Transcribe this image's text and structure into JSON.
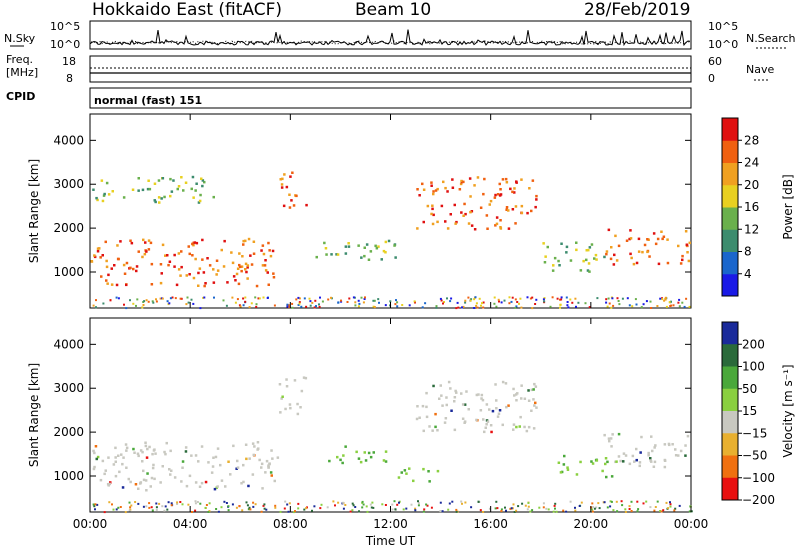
{
  "header": {
    "station": "Hokkaido East (fitACF)",
    "beam": "Beam 10",
    "date": "28/Feb/2019"
  },
  "nsky_panel": {
    "left_label": "N.Sky",
    "right_label": "N.Search",
    "left_ticks": [
      "10^5",
      "10^0"
    ],
    "right_ticks": [
      "10^5",
      "10^0"
    ]
  },
  "freq_panel": {
    "left_label_line1": "Freq.",
    "left_label_line2": "[MHz]",
    "right_label": "Nave",
    "left_ticks": [
      "18",
      "8"
    ],
    "right_ticks": [
      "60",
      "0"
    ]
  },
  "cpid": {
    "label": "CPID",
    "value": "normal (fast) 151"
  },
  "chart_data": [
    {
      "type": "heatmap",
      "title": "",
      "xlabel": "",
      "ylabel": "Slant Range [km]",
      "xlim": [
        "00:00",
        "00:00"
      ],
      "ylim": [
        180,
        4600
      ],
      "y_ticks": [
        1000,
        2000,
        3000,
        4000
      ],
      "x_ticks": [
        "00:00",
        "04:00",
        "08:00",
        "12:00",
        "16:00",
        "20:00",
        "00:00"
      ],
      "colorbar": {
        "label": "Power [dB]",
        "ticks": [
          4,
          8,
          12,
          16,
          20,
          24,
          28
        ],
        "colors": [
          "#1a1ae6",
          "#1a66cc",
          "#3c8c6e",
          "#6ab04c",
          "#e8d020",
          "#f0a020",
          "#f06010",
          "#e01010"
        ]
      },
      "echo_bands": [
        {
          "t0": 0.0,
          "t1": 7.5,
          "r0": 700,
          "r1": 1800,
          "level": "high"
        },
        {
          "t0": 7.5,
          "t1": 8.6,
          "r0": 2400,
          "r1": 3300,
          "level": "high"
        },
        {
          "t0": 13.0,
          "t1": 17.8,
          "r0": 2000,
          "r1": 3200,
          "level": "high"
        },
        {
          "t0": 20.5,
          "t1": 24.0,
          "r0": 1200,
          "r1": 2000,
          "level": "high"
        },
        {
          "t0": 0.0,
          "t1": 5.0,
          "r0": 2600,
          "r1": 3200,
          "level": "mid"
        },
        {
          "t0": 9.0,
          "t1": 12.5,
          "r0": 1300,
          "r1": 1800,
          "level": "mid"
        },
        {
          "t0": 18.0,
          "t1": 20.5,
          "r0": 1000,
          "r1": 1700,
          "level": "mid"
        }
      ]
    },
    {
      "type": "heatmap",
      "title": "",
      "xlabel": "Time UT",
      "ylabel": "Slant Range [km]",
      "xlim": [
        "00:00",
        "00:00"
      ],
      "ylim": [
        180,
        4600
      ],
      "y_ticks": [
        1000,
        2000,
        3000,
        4000
      ],
      "x_ticks": [
        "00:00",
        "04:00",
        "08:00",
        "12:00",
        "16:00",
        "20:00",
        "00:00"
      ],
      "colorbar": {
        "label": "Velocity [m s⁻¹]",
        "ticks": [
          200,
          100,
          50,
          15,
          -15,
          -50,
          -100,
          -200
        ],
        "colors": [
          "#1a2a9a",
          "#2a6a3a",
          "#4aa83a",
          "#8ad040",
          "#c8c8c0",
          "#e8b030",
          "#f07010",
          "#e81010"
        ]
      },
      "echo_bands": [
        {
          "t0": 0.0,
          "t1": 7.5,
          "r0": 700,
          "r1": 1800,
          "level": "ground"
        },
        {
          "t0": 7.5,
          "t1": 8.6,
          "r0": 2400,
          "r1": 3300,
          "level": "ground"
        },
        {
          "t0": 13.0,
          "t1": 17.8,
          "r0": 2000,
          "r1": 3200,
          "level": "ground"
        },
        {
          "t0": 20.5,
          "t1": 24.0,
          "r0": 1200,
          "r1": 2000,
          "level": "ground"
        },
        {
          "t0": 9.5,
          "t1": 12.0,
          "r0": 1300,
          "r1": 1700,
          "level": "green"
        },
        {
          "t0": 12.0,
          "t1": 14.0,
          "r0": 900,
          "r1": 1200,
          "level": "green"
        },
        {
          "t0": 18.5,
          "t1": 21.0,
          "r0": 1000,
          "r1": 1500,
          "level": "green"
        }
      ]
    }
  ]
}
